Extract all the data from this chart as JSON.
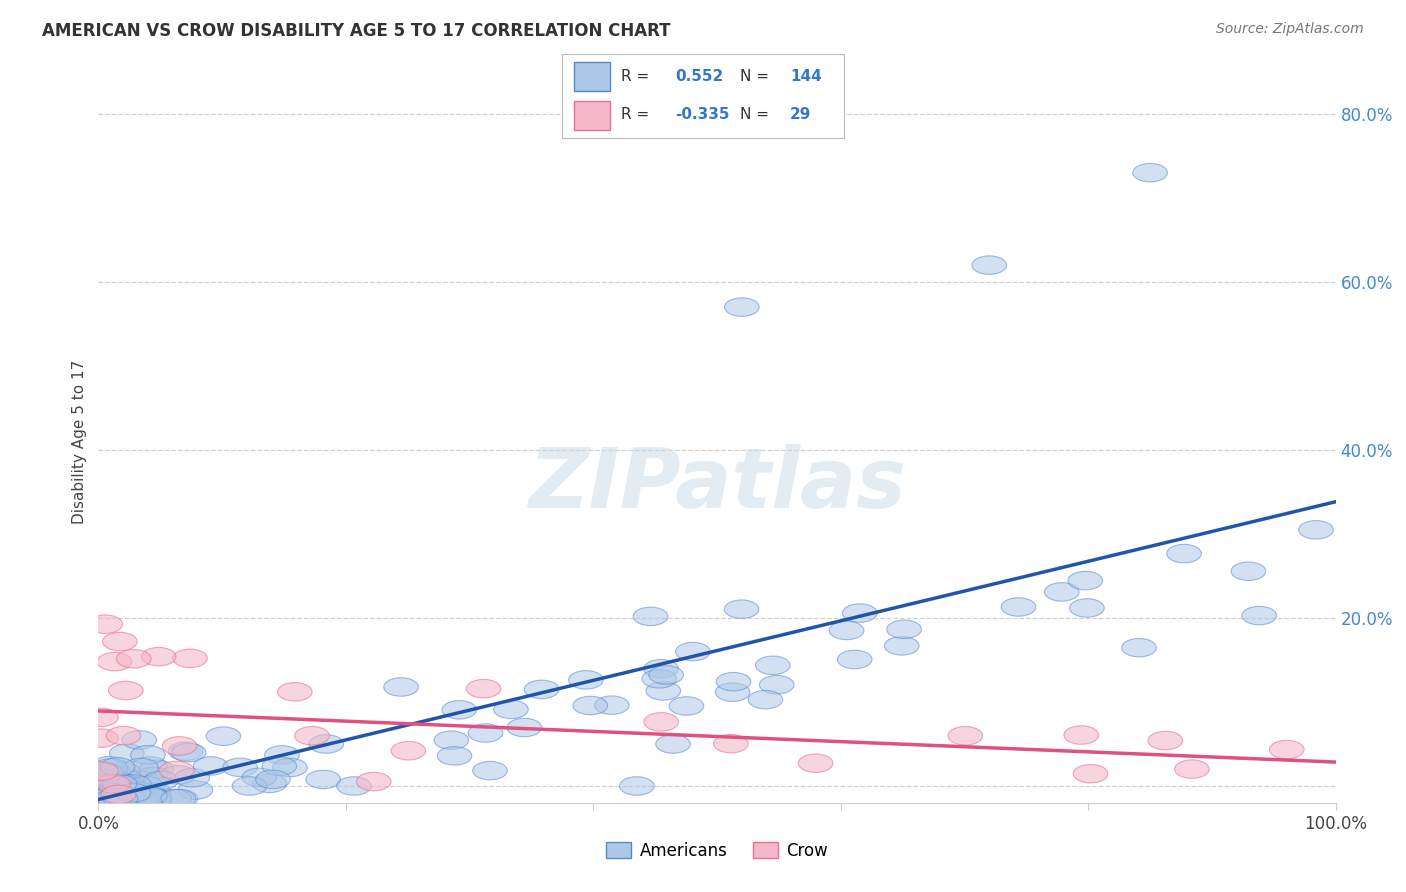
{
  "title": "AMERICAN VS CROW DISABILITY AGE 5 TO 17 CORRELATION CHART",
  "source": "Source: ZipAtlas.com",
  "ylabel": "Disability Age 5 to 17",
  "xlim": [
    0,
    1.0
  ],
  "ylim": [
    -0.02,
    0.84
  ],
  "blue_color": "#aec8e8",
  "pink_color": "#f4b8c8",
  "blue_edge_color": "#5588cc",
  "pink_edge_color": "#e87090",
  "blue_line_color": "#2255aa",
  "pink_line_color": "#e05080",
  "background_color": "#ffffff",
  "watermark_color": "#c8d8e8",
  "grid_color": "#cccccc"
}
